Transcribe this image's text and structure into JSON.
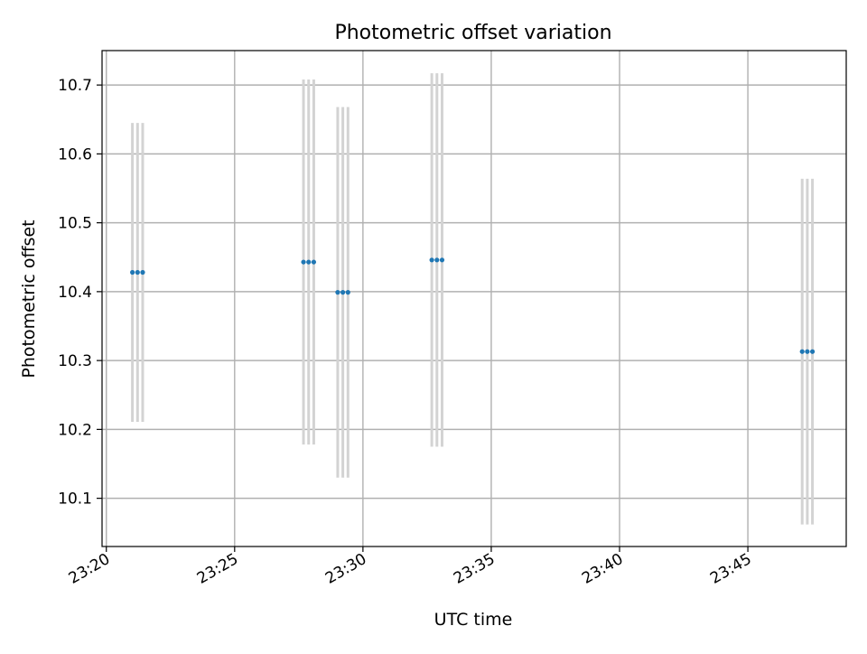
{
  "chart_data": {
    "type": "scatter",
    "title": "Photometric offset variation",
    "xlabel": "UTC time",
    "ylabel": "Photometric offset",
    "grid": true,
    "x_unit": "time of day (HH:MM)",
    "xlim": [
      "23:19:50",
      "23:48:50"
    ],
    "ylim": [
      10.03,
      10.75
    ],
    "x_ticks": [
      "23:20",
      "23:25",
      "23:30",
      "23:35",
      "23:40",
      "23:45"
    ],
    "y_ticks": [
      "10.1",
      "10.2",
      "10.3",
      "10.4",
      "10.5",
      "10.6",
      "10.7"
    ],
    "colors": {
      "point": "#1f77b4",
      "errorbar": "#d3d3d3",
      "grid": "#b0b0b0"
    },
    "points": [
      {
        "x": "23:21:01",
        "y": 10.428,
        "err": 0.217
      },
      {
        "x": "23:21:13",
        "y": 10.428,
        "err": 0.217
      },
      {
        "x": "23:21:25",
        "y": 10.428,
        "err": 0.217
      },
      {
        "x": "23:27:41",
        "y": 10.443,
        "err": 0.265
      },
      {
        "x": "23:27:53",
        "y": 10.443,
        "err": 0.265
      },
      {
        "x": "23:28:05",
        "y": 10.443,
        "err": 0.265
      },
      {
        "x": "23:29:01",
        "y": 10.399,
        "err": 0.269
      },
      {
        "x": "23:29:13",
        "y": 10.399,
        "err": 0.269
      },
      {
        "x": "23:29:25",
        "y": 10.399,
        "err": 0.269
      },
      {
        "x": "23:32:41",
        "y": 10.446,
        "err": 0.271
      },
      {
        "x": "23:32:53",
        "y": 10.446,
        "err": 0.271
      },
      {
        "x": "23:33:05",
        "y": 10.446,
        "err": 0.271
      },
      {
        "x": "23:47:07",
        "y": 10.313,
        "err": 0.251
      },
      {
        "x": "23:47:19",
        "y": 10.313,
        "err": 0.251
      },
      {
        "x": "23:47:31",
        "y": 10.313,
        "err": 0.251
      }
    ]
  }
}
